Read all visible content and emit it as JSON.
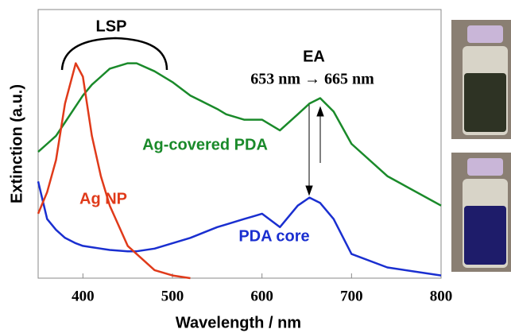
{
  "chart_data": {
    "type": "line",
    "x_label": "Wavelength / nm",
    "y_label": "Extinction (a.u.)",
    "annotations": [
      "LSP",
      "EA",
      "653 nm → 665 nm"
    ],
    "x": [
      350,
      360,
      370,
      380,
      392,
      400,
      410,
      420,
      430,
      450,
      460,
      480,
      500,
      520,
      550,
      560,
      580,
      590,
      600,
      620,
      640,
      653,
      665,
      680,
      700,
      740,
      800
    ],
    "series": [
      {
        "name": "Ag-covered PDA",
        "color": "#1a8a2a",
        "values": [
          0.47,
          0.5,
          0.53,
          0.58,
          0.64,
          0.68,
          0.72,
          0.75,
          0.78,
          0.8,
          0.8,
          0.77,
          0.73,
          0.68,
          0.63,
          0.61,
          0.59,
          0.59,
          0.59,
          0.55,
          0.61,
          0.65,
          0.67,
          0.62,
          0.5,
          0.38,
          0.27
        ]
      },
      {
        "name": "PDA core",
        "color": "#1a2fd0",
        "values": [
          0.36,
          0.22,
          0.18,
          0.15,
          0.13,
          0.12,
          0.115,
          0.11,
          0.105,
          0.1,
          0.1,
          0.11,
          0.13,
          0.15,
          0.19,
          0.2,
          0.22,
          0.23,
          0.24,
          0.19,
          0.27,
          0.3,
          0.28,
          0.22,
          0.09,
          0.04,
          0.01
        ]
      },
      {
        "name": "Ag NP",
        "color": "#e03a1a",
        "values": [
          0.24,
          0.32,
          0.44,
          0.65,
          0.8,
          0.75,
          0.53,
          0.38,
          0.27,
          0.12,
          0.09,
          0.03,
          0.01,
          0,
          null,
          null,
          null,
          null,
          null,
          null,
          null,
          null,
          null,
          null,
          null,
          null,
          null
        ]
      }
    ],
    "xlim": [
      350,
      800
    ],
    "xticks": [
      400,
      500,
      600,
      700,
      800
    ],
    "ylim": [
      0,
      1
    ]
  }
}
